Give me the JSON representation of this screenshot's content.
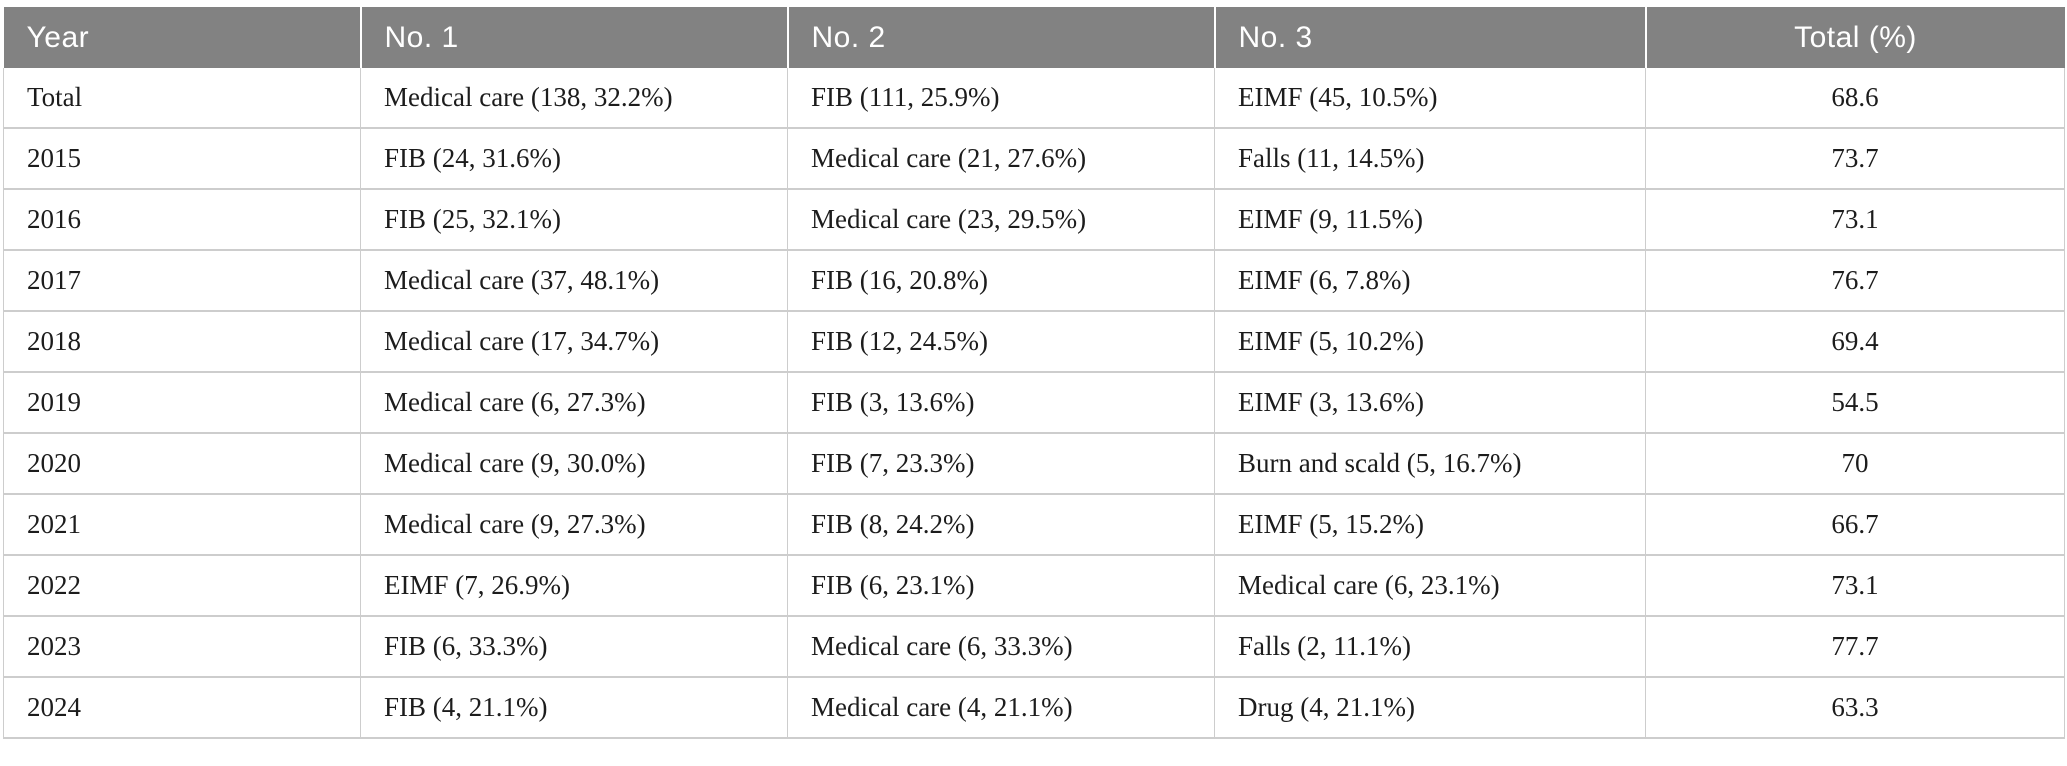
{
  "table": {
    "columns": [
      {
        "label": "Year",
        "align": "left"
      },
      {
        "label": "No. 1",
        "align": "left"
      },
      {
        "label": "No. 2",
        "align": "left"
      },
      {
        "label": "No. 3",
        "align": "left"
      },
      {
        "label": "Total (%)",
        "align": "center"
      }
    ],
    "rows": [
      {
        "year": "Total",
        "no1": "Medical care (138, 32.2%)",
        "no2": "FIB (111, 25.9%)",
        "no3": "EIMF (45, 10.5%)",
        "total": "68.6"
      },
      {
        "year": "2015",
        "no1": "FIB (24, 31.6%)",
        "no2": "Medical care (21, 27.6%)",
        "no3": "Falls (11, 14.5%)",
        "total": "73.7"
      },
      {
        "year": "2016",
        "no1": "FIB (25, 32.1%)",
        "no2": "Medical care (23, 29.5%)",
        "no3": "EIMF (9, 11.5%)",
        "total": "73.1"
      },
      {
        "year": "2017",
        "no1": "Medical care (37, 48.1%)",
        "no2": "FIB (16, 20.8%)",
        "no3": "EIMF (6, 7.8%)",
        "total": "76.7"
      },
      {
        "year": "2018",
        "no1": "Medical care (17, 34.7%)",
        "no2": "FIB (12, 24.5%)",
        "no3": "EIMF (5, 10.2%)",
        "total": "69.4"
      },
      {
        "year": "2019",
        "no1": "Medical care (6, 27.3%)",
        "no2": "FIB (3, 13.6%)",
        "no3": "EIMF (3, 13.6%)",
        "total": "54.5"
      },
      {
        "year": "2020",
        "no1": "Medical care (9, 30.0%)",
        "no2": "FIB (7, 23.3%)",
        "no3": "Burn and scald (5, 16.7%)",
        "total": "70"
      },
      {
        "year": "2021",
        "no1": "Medical care (9, 27.3%)",
        "no2": "FIB (8, 24.2%)",
        "no3": "EIMF (5, 15.2%)",
        "total": "66.7"
      },
      {
        "year": "2022",
        "no1": "EIMF (7, 26.9%)",
        "no2": "FIB (6, 23.1%)",
        "no3": "Medical care (6, 23.1%)",
        "total": "73.1"
      },
      {
        "year": "2023",
        "no1": "FIB (6, 33.3%)",
        "no2": "Medical care (6, 33.3%)",
        "no3": "Falls (2, 11.1%)",
        "total": "77.7"
      },
      {
        "year": "2024",
        "no1": "FIB (4, 21.1%)",
        "no2": "Medical care (4, 21.1%)",
        "no3": "Drug (4, 21.1%)",
        "total": "63.3"
      }
    ],
    "colors": {
      "header_bg": "#828282",
      "header_text": "#ffffff",
      "body_text": "#1c1c1c",
      "grid_line": "#cdcdcd"
    }
  }
}
